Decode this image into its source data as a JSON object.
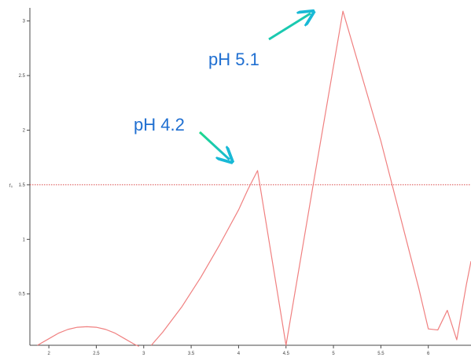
{
  "chart_data": {
    "type": "line",
    "title": "",
    "xlabel": "",
    "ylabel": "f₀",
    "xlim": [
      1.8,
      6.45
    ],
    "ylim": [
      0.03,
      3.12
    ],
    "x_ticks": [
      {
        "value": 2,
        "label": "2"
      },
      {
        "value": 2.5,
        "label": "2.5"
      },
      {
        "value": 3,
        "label": "3"
      },
      {
        "value": 3.5,
        "label": "3.5"
      },
      {
        "value": 4,
        "label": "4"
      },
      {
        "value": 4.5,
        "label": "4.5"
      },
      {
        "value": 5,
        "label": "5"
      },
      {
        "value": 5.5,
        "label": "5.5"
      },
      {
        "value": 6,
        "label": "6"
      }
    ],
    "y_ticks": [
      {
        "value": 0.5,
        "label": "0.5"
      },
      {
        "value": 1,
        "label": "1"
      },
      {
        "value": 1.5,
        "label": "1.5"
      },
      {
        "value": 2,
        "label": "2"
      },
      {
        "value": 2.5,
        "label": "2.5"
      },
      {
        "value": 3,
        "label": "3"
      }
    ],
    "grid": false,
    "legend": "none",
    "series": [
      {
        "color": "#f08080",
        "points": [
          [
            1.88,
            0.03
          ],
          [
            2.0,
            0.09
          ],
          [
            2.1,
            0.14
          ],
          [
            2.2,
            0.175
          ],
          [
            2.3,
            0.195
          ],
          [
            2.4,
            0.2
          ],
          [
            2.5,
            0.195
          ],
          [
            2.6,
            0.175
          ],
          [
            2.7,
            0.14
          ],
          [
            2.8,
            0.09
          ],
          [
            2.9,
            0.04
          ],
          [
            2.95,
            0.02
          ]
        ]
      },
      {
        "color": "#f08080",
        "points": [
          [
            3.08,
            0.03
          ],
          [
            3.2,
            0.15
          ],
          [
            3.4,
            0.38
          ],
          [
            3.6,
            0.65
          ],
          [
            3.8,
            0.95
          ],
          [
            4.0,
            1.27
          ],
          [
            4.1,
            1.46
          ],
          [
            4.2,
            1.63
          ],
          [
            4.5,
            0.03
          ],
          [
            4.8,
            1.57
          ],
          [
            5.1,
            3.09
          ],
          [
            5.5,
            1.9
          ],
          [
            5.9,
            0.55
          ],
          [
            6.0,
            0.18
          ],
          [
            6.1,
            0.17
          ],
          [
            6.2,
            0.35
          ],
          [
            6.3,
            0.08
          ],
          [
            6.4,
            0.58
          ],
          [
            6.45,
            0.8
          ]
        ]
      }
    ],
    "reference_lines": [
      {
        "axis": "y",
        "value": 1.5,
        "style": "dotted",
        "color": "#d94c4c"
      }
    ],
    "annotations": [
      {
        "text": "pH 5.1",
        "arrow_color": "#2ecf8a"
      },
      {
        "text": "pH 4.2",
        "arrow_color": "#2ecf8a"
      }
    ]
  }
}
